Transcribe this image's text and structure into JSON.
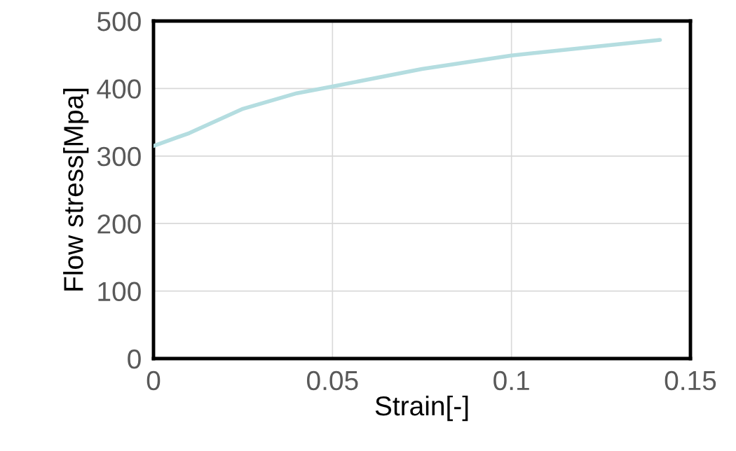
{
  "chart_data": {
    "type": "line",
    "xlabel": "Strain[-]",
    "ylabel": "Flow stress[Mpa]",
    "series": [
      {
        "color": "#b4dde0",
        "x": [
          0,
          0.01,
          0.025,
          0.04,
          0.05,
          0.075,
          0.1,
          0.125,
          0.1415
        ],
        "values": [
          315,
          334,
          370,
          393,
          403,
          429,
          449,
          463,
          472
        ]
      }
    ],
    "xlim": [
      0,
      0.15
    ],
    "xticks": [
      0,
      0.05,
      0.1,
      0.15
    ],
    "ylim": [
      0,
      500
    ],
    "yticks": [
      0,
      100,
      200,
      300,
      400,
      500
    ],
    "grid": true,
    "marker": "none",
    "line_style": "solid"
  }
}
